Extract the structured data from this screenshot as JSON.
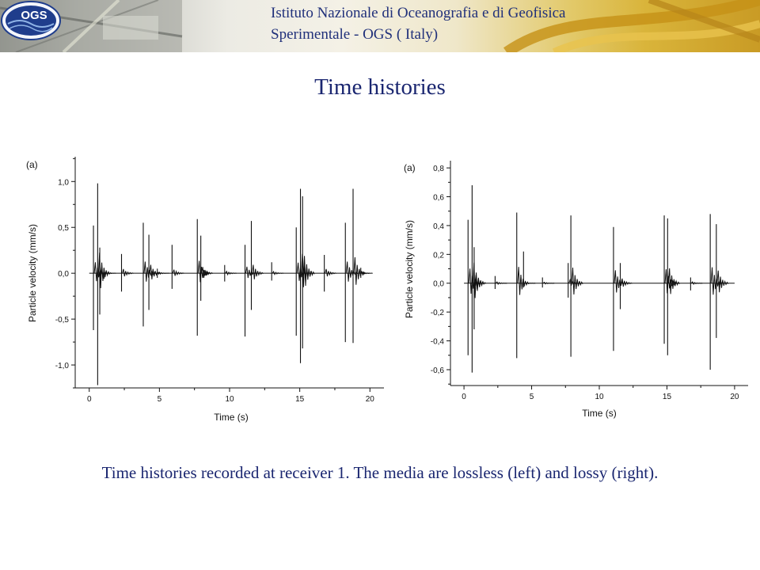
{
  "header": {
    "institute_line1": "Istituto Nazionale di Oceanografia e di Geofisica",
    "institute_line2": "Sperimentale - OGS ( Italy)",
    "logo_text": "OGS"
  },
  "slide": {
    "title": "Time histories",
    "caption": "Time histories recorded at receiver 1. The media are lossless (left) and lossy (right)."
  },
  "colors": {
    "title": "#1a2670",
    "trace": "#111111",
    "banner_gold": "#d9b43a",
    "logo_blue": "#1f3d8c"
  },
  "chart_data": [
    {
      "type": "line",
      "panel_label": "(a)",
      "xlabel": "Time (s)",
      "ylabel": "Particle velocity (mm/s)",
      "xlim": [
        -1,
        21
      ],
      "ylim": [
        -1.25,
        1.27
      ],
      "xticks": [
        0,
        5,
        10,
        15,
        20
      ],
      "xtick_labels": [
        "0",
        "5",
        "10",
        "15",
        "20"
      ],
      "yticks": [
        1.0,
        0.5,
        0.0,
        -0.5,
        -1.0
      ],
      "ytick_labels": [
        "1,0",
        "0,5",
        "0,0",
        "-0,5",
        "-1,0"
      ],
      "grid": false,
      "series": [
        {
          "events": [
            {
              "t": 0.3,
              "max": 0.52,
              "min": -0.62
            },
            {
              "t": 0.6,
              "max": 0.98,
              "min": -1.22
            },
            {
              "t": 0.75,
              "max": 0.28,
              "min": -0.45
            },
            {
              "t": 1.05,
              "max": 0.05,
              "min": -0.06
            },
            {
              "t": 2.3,
              "max": 0.21,
              "min": -0.2
            },
            {
              "t": 3.85,
              "max": 0.55,
              "min": -0.58
            },
            {
              "t": 4.25,
              "max": 0.42,
              "min": -0.4
            },
            {
              "t": 4.85,
              "max": 0.05,
              "min": -0.05
            },
            {
              "t": 5.9,
              "max": 0.31,
              "min": -0.17
            },
            {
              "t": 7.7,
              "max": 0.59,
              "min": -0.68
            },
            {
              "t": 7.95,
              "max": 0.41,
              "min": -0.3
            },
            {
              "t": 9.65,
              "max": 0.09,
              "min": -0.09
            },
            {
              "t": 11.1,
              "max": 0.31,
              "min": -0.69
            },
            {
              "t": 11.55,
              "max": 0.57,
              "min": -0.4
            },
            {
              "t": 13.0,
              "max": 0.12,
              "min": -0.08
            },
            {
              "t": 14.75,
              "max": 0.5,
              "min": -0.68
            },
            {
              "t": 15.05,
              "max": 0.92,
              "min": -0.98
            },
            {
              "t": 15.2,
              "max": 0.84,
              "min": -0.82
            },
            {
              "t": 16.75,
              "max": 0.2,
              "min": -0.2
            },
            {
              "t": 18.25,
              "max": 0.55,
              "min": -0.75
            },
            {
              "t": 18.8,
              "max": 0.92,
              "min": -0.76
            },
            {
              "t": 19.35,
              "max": 0.06,
              "min": -0.05
            }
          ],
          "t_end": 20
        }
      ]
    },
    {
      "type": "line",
      "panel_label": "(a)",
      "xlabel": "Time (s)",
      "ylabel": "Particle velocity (mm/s)",
      "xlim": [
        -1,
        21
      ],
      "ylim": [
        -0.71,
        0.85
      ],
      "xticks": [
        0,
        5,
        10,
        15,
        20
      ],
      "xtick_labels": [
        "0",
        "5",
        "10",
        "15",
        "20"
      ],
      "yticks": [
        0.8,
        0.6,
        0.4,
        0.2,
        0.0,
        -0.2,
        -0.4,
        -0.6
      ],
      "ytick_labels": [
        "0,8",
        "0,6",
        "0,4",
        "0,2",
        "0,0",
        "-0,2",
        "-0,4",
        "-0,6"
      ],
      "grid": false,
      "series": [
        {
          "events": [
            {
              "t": 0.3,
              "max": 0.44,
              "min": -0.5
            },
            {
              "t": 0.6,
              "max": 0.68,
              "min": -0.62
            },
            {
              "t": 0.75,
              "max": 0.25,
              "min": -0.32
            },
            {
              "t": 2.3,
              "max": 0.05,
              "min": -0.04
            },
            {
              "t": 3.9,
              "max": 0.49,
              "min": -0.52
            },
            {
              "t": 4.4,
              "max": 0.22,
              "min": -0.03
            },
            {
              "t": 5.8,
              "max": 0.04,
              "min": -0.03
            },
            {
              "t": 7.7,
              "max": 0.14,
              "min": -0.1
            },
            {
              "t": 7.9,
              "max": 0.47,
              "min": -0.51
            },
            {
              "t": 11.05,
              "max": 0.39,
              "min": -0.47
            },
            {
              "t": 11.55,
              "max": 0.14,
              "min": -0.18
            },
            {
              "t": 14.8,
              "max": 0.47,
              "min": -0.42
            },
            {
              "t": 15.05,
              "max": 0.45,
              "min": -0.5
            },
            {
              "t": 16.75,
              "max": 0.04,
              "min": -0.05
            },
            {
              "t": 18.2,
              "max": 0.48,
              "min": -0.6
            },
            {
              "t": 18.65,
              "max": 0.41,
              "min": -0.38
            }
          ],
          "t_end": 20
        }
      ]
    }
  ]
}
